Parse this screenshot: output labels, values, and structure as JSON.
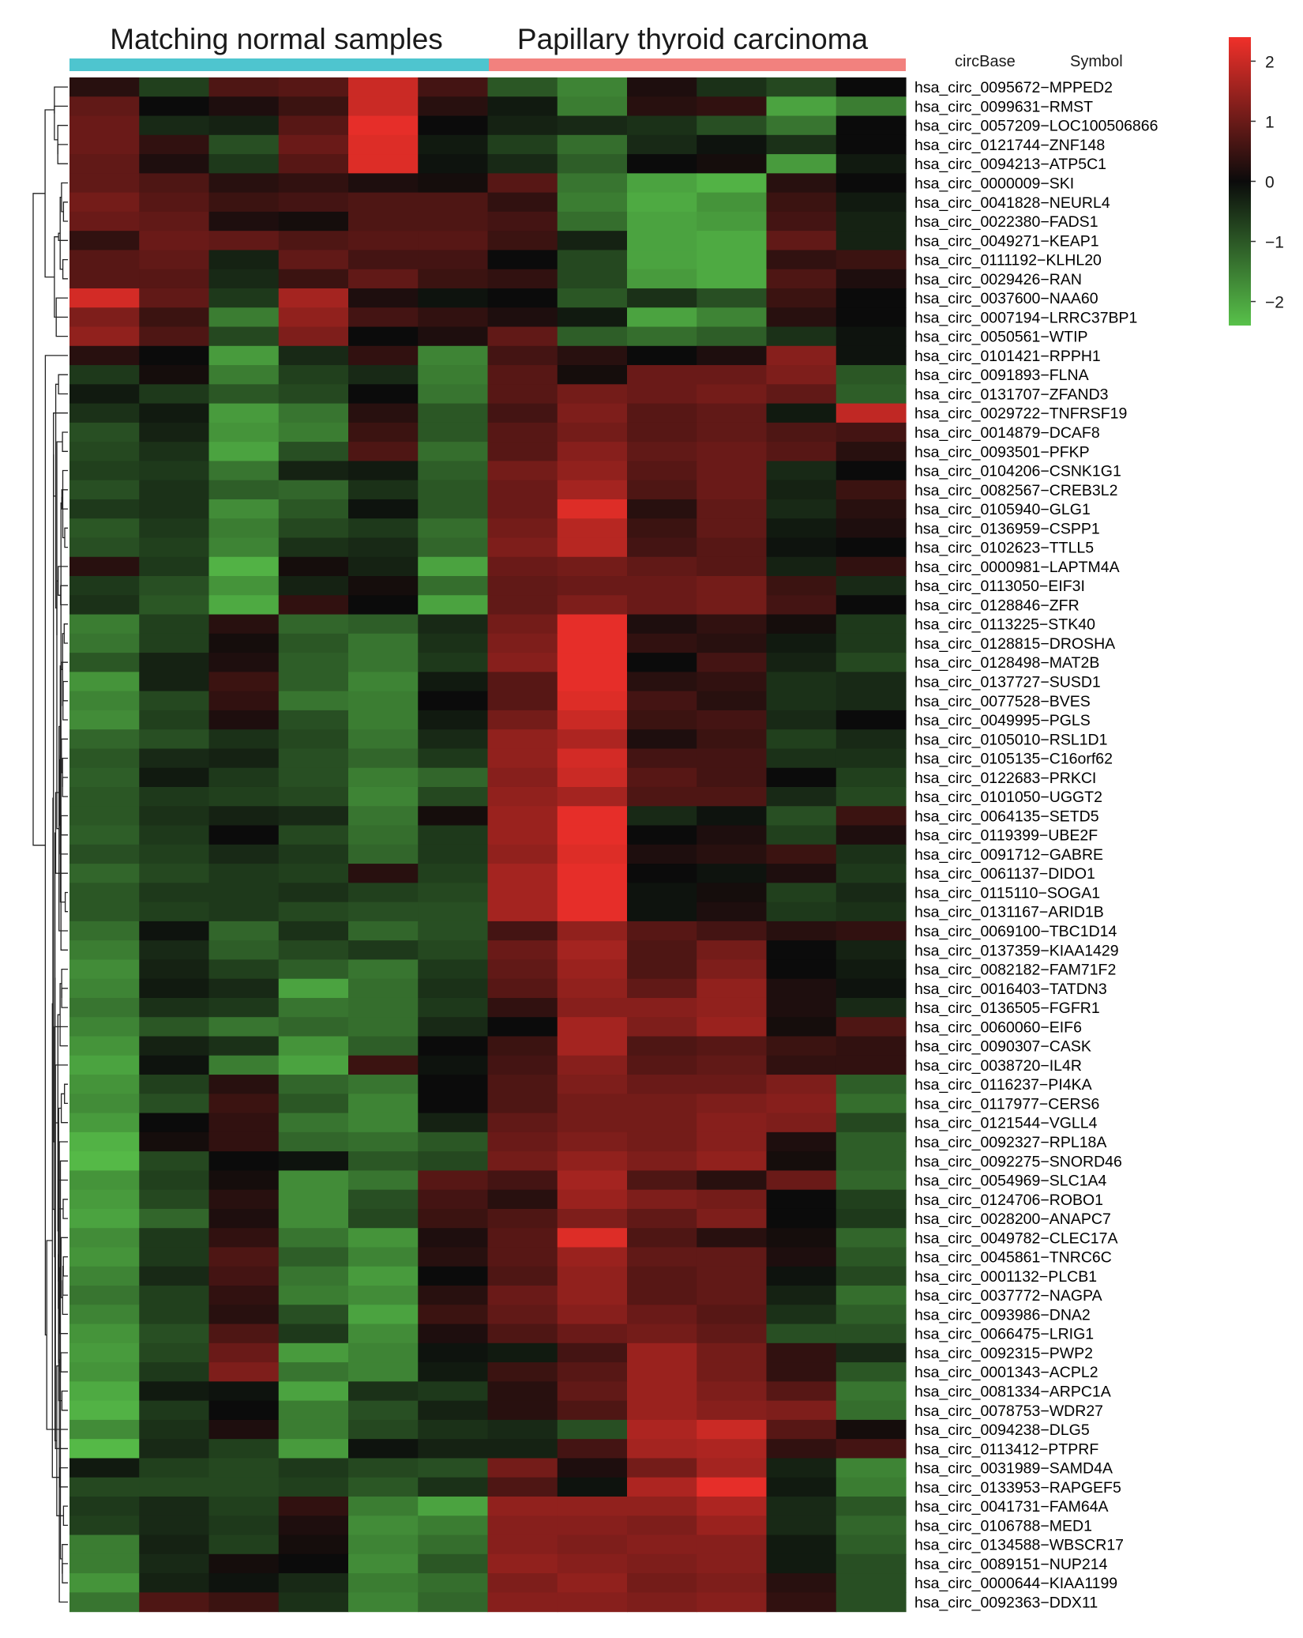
{
  "chart_data": {
    "type": "heatmap",
    "title": "",
    "group_labels": [
      "Matching normal samples",
      "Papillary thyroid carcinoma"
    ],
    "group_colors": [
      "#4ec5cf",
      "#f2817e"
    ],
    "column_headers": [
      "circBase",
      "Symbol"
    ],
    "highlight_row": "hsa_circ_0060060−EIF6",
    "highlight_color": "#e8231f",
    "colorbar": {
      "ticks": [
        2,
        1,
        0,
        -1,
        -2
      ],
      "tick_labels": [
        "2",
        "1",
        "0",
        "−1",
        "−2"
      ],
      "vmin": -2.4,
      "vmax": 2.4,
      "colors": {
        "low": "#58c14a",
        "mid": "#0b0b0b",
        "high": "#f0302a"
      }
    },
    "rows": [
      "hsa_circ_0095672−MPPED2",
      "hsa_circ_0099631−RMST",
      "hsa_circ_0057209−LOC100506866",
      "hsa_circ_0121744−ZNF148",
      "hsa_circ_0094213−ATP5C1",
      "hsa_circ_0000009−SKI",
      "hsa_circ_0041828−NEURL4",
      "hsa_circ_0022380−FADS1",
      "hsa_circ_0049271−KEAP1",
      "hsa_circ_0111192−KLHL20",
      "hsa_circ_0029426−RAN",
      "hsa_circ_0037600−NAA60",
      "hsa_circ_0007194−LRRC37BP1",
      "hsa_circ_0050561−WTIP",
      "hsa_circ_0101421−RPPH1",
      "hsa_circ_0091893−FLNA",
      "hsa_circ_0131707−ZFAND3",
      "hsa_circ_0029722−TNFRSF19",
      "hsa_circ_0014879−DCAF8",
      "hsa_circ_0093501−PFKP",
      "hsa_circ_0104206−CSNK1G1",
      "hsa_circ_0082567−CREB3L2",
      "hsa_circ_0105940−GLG1",
      "hsa_circ_0136959−CSPP1",
      "hsa_circ_0102623−TTLL5",
      "hsa_circ_0000981−LAPTM4A",
      "hsa_circ_0113050−EIF3I",
      "hsa_circ_0128846−ZFR",
      "hsa_circ_0113225−STK40",
      "hsa_circ_0128815−DROSHA",
      "hsa_circ_0128498−MAT2B",
      "hsa_circ_0137727−SUSD1",
      "hsa_circ_0077528−BVES",
      "hsa_circ_0049995−PGLS",
      "hsa_circ_0105010−RSL1D1",
      "hsa_circ_0105135−C16orf62",
      "hsa_circ_0122683−PRKCI",
      "hsa_circ_0101050−UGGT2",
      "hsa_circ_0064135−SETD5",
      "hsa_circ_0119399−UBE2F",
      "hsa_circ_0091712−GABRE",
      "hsa_circ_0061137−DIDO1",
      "hsa_circ_0115110−SOGA1",
      "hsa_circ_0131167−ARID1B",
      "hsa_circ_0069100−TBC1D14",
      "hsa_circ_0137359−KIAA1429",
      "hsa_circ_0082182−FAM71F2",
      "hsa_circ_0016403−TATDN3",
      "hsa_circ_0136505−FGFR1",
      "hsa_circ_0060060−EIF6",
      "hsa_circ_0090307−CASK",
      "hsa_circ_0038720−IL4R",
      "hsa_circ_0116237−PI4KA",
      "hsa_circ_0117977−CERS6",
      "hsa_circ_0121544−VGLL4",
      "hsa_circ_0092327−RPL18A",
      "hsa_circ_0092275−SNORD46",
      "hsa_circ_0054969−SLC1A4",
      "hsa_circ_0124706−ROBO1",
      "hsa_circ_0028200−ANAPC7",
      "hsa_circ_0049782−CLEC17A",
      "hsa_circ_0045861−TNRC6C",
      "hsa_circ_0001132−PLCB1",
      "hsa_circ_0037772−NAGPA",
      "hsa_circ_0093986−DNA2",
      "hsa_circ_0066475−LRIG1",
      "hsa_circ_0092315−PWP2",
      "hsa_circ_0001343−ACPL2",
      "hsa_circ_0081334−ARPC1A",
      "hsa_circ_0078753−WDR27",
      "hsa_circ_0094238−DLG5",
      "hsa_circ_0113412−PTPRF",
      "hsa_circ_0031989−SAMD4A",
      "hsa_circ_0133953−RAPGEF5",
      "hsa_circ_0041731−FAM64A",
      "hsa_circ_0106788−MED1",
      "hsa_circ_0134588−WBSCR17",
      "hsa_circ_0089151−NUP214",
      "hsa_circ_0000644−KIAA1199",
      "hsa_circ_0092363−DDX11"
    ],
    "values": [
      [
        0.3,
        -0.7,
        0.7,
        0.8,
        2.0,
        0.6,
        -1.0,
        -1.6,
        0.2,
        -0.5,
        -0.8,
        0.0
      ],
      [
        0.9,
        0.0,
        0.2,
        0.5,
        2.0,
        0.3,
        -0.2,
        -1.5,
        0.3,
        0.4,
        -2.0,
        -1.5
      ],
      [
        1.0,
        -0.4,
        -0.3,
        0.8,
        2.3,
        0.0,
        -0.3,
        -0.4,
        -0.5,
        -0.9,
        -1.4,
        0.0
      ],
      [
        1.0,
        0.4,
        -0.9,
        1.0,
        2.2,
        -0.2,
        -0.7,
        -1.3,
        -0.4,
        -0.1,
        -0.5,
        0.0
      ],
      [
        0.9,
        0.2,
        -0.6,
        0.8,
        2.2,
        -0.1,
        -0.4,
        -1.1,
        0.0,
        0.1,
        -1.9,
        -0.2
      ],
      [
        0.9,
        0.7,
        0.3,
        0.4,
        0.2,
        0.1,
        0.8,
        -1.4,
        -2.0,
        -2.2,
        0.3,
        0.0
      ],
      [
        1.1,
        0.8,
        0.5,
        0.6,
        0.7,
        0.7,
        0.4,
        -1.5,
        -2.1,
        -1.8,
        0.5,
        -0.2
      ],
      [
        1.0,
        0.9,
        0.2,
        0.1,
        0.7,
        0.7,
        0.6,
        -1.3,
        -2.0,
        -1.9,
        0.6,
        -0.3
      ],
      [
        0.4,
        1.0,
        0.9,
        0.7,
        0.8,
        0.8,
        0.5,
        -0.3,
        -2.0,
        -2.1,
        0.9,
        -0.3
      ],
      [
        0.8,
        0.9,
        -0.3,
        0.9,
        0.6,
        0.6,
        0.0,
        -0.8,
        -2.0,
        -2.1,
        0.4,
        0.5
      ],
      [
        0.8,
        0.8,
        -0.4,
        0.5,
        0.9,
        0.5,
        0.4,
        -0.8,
        -1.9,
        -2.1,
        0.7,
        0.2
      ],
      [
        2.1,
        0.9,
        -0.6,
        1.6,
        0.2,
        -0.1,
        0.0,
        -1.0,
        -0.5,
        -0.9,
        0.5,
        0.0
      ],
      [
        1.2,
        0.5,
        -1.5,
        1.4,
        0.6,
        0.4,
        0.2,
        -0.2,
        -2.0,
        -1.6,
        0.3,
        0.0
      ],
      [
        1.4,
        0.7,
        -0.8,
        1.2,
        0.0,
        0.2,
        0.9,
        -1.1,
        -1.3,
        -1.1,
        -0.5,
        -0.1
      ],
      [
        0.3,
        0.0,
        -1.9,
        -0.4,
        0.4,
        -1.6,
        0.6,
        0.3,
        0.0,
        0.2,
        1.3,
        -0.1
      ],
      [
        -0.6,
        0.1,
        -1.5,
        -0.7,
        -0.4,
        -1.5,
        0.8,
        0.1,
        1.0,
        1.0,
        1.2,
        -1.0
      ],
      [
        -0.2,
        -0.6,
        -1.0,
        -0.8,
        0.0,
        -1.4,
        0.8,
        1.1,
        1.0,
        1.1,
        0.9,
        -1.1
      ],
      [
        -0.5,
        -0.2,
        -1.9,
        -1.4,
        0.3,
        -1.0,
        0.6,
        1.2,
        0.8,
        0.9,
        -0.2,
        1.9
      ],
      [
        -0.9,
        -0.3,
        -1.8,
        -1.5,
        0.5,
        -1.0,
        0.8,
        1.1,
        0.8,
        0.9,
        0.7,
        0.6
      ],
      [
        -0.8,
        -0.5,
        -2.0,
        -0.9,
        0.7,
        -1.3,
        0.8,
        1.3,
        0.9,
        1.0,
        0.8,
        0.3
      ],
      [
        -0.7,
        -0.6,
        -1.4,
        -0.3,
        -0.2,
        -1.1,
        1.1,
        1.4,
        0.8,
        1.0,
        -0.4,
        0.0
      ],
      [
        -0.9,
        -0.5,
        -1.1,
        -1.2,
        -0.5,
        -1.0,
        1.0,
        1.6,
        0.7,
        1.0,
        -0.3,
        0.5
      ],
      [
        -0.6,
        -0.5,
        -1.7,
        -1.0,
        -0.1,
        -1.0,
        1.0,
        2.2,
        0.3,
        0.9,
        -0.4,
        0.3
      ],
      [
        -1.0,
        -0.6,
        -1.5,
        -0.8,
        -0.6,
        -1.3,
        1.1,
        1.8,
        0.5,
        0.9,
        -0.2,
        0.2
      ],
      [
        -0.9,
        -0.7,
        -1.6,
        -0.5,
        -0.4,
        -1.2,
        1.2,
        1.8,
        0.6,
        0.8,
        -0.1,
        0.0
      ],
      [
        0.3,
        -0.6,
        -2.2,
        0.1,
        -0.3,
        -2.0,
        1.0,
        1.1,
        0.9,
        0.8,
        -0.3,
        0.4
      ],
      [
        -0.6,
        -0.9,
        -1.8,
        -0.3,
        0.1,
        -1.3,
        0.9,
        1.0,
        1.0,
        1.1,
        0.5,
        -0.4
      ],
      [
        -0.5,
        -1.0,
        -2.1,
        0.4,
        0.0,
        -2.0,
        0.9,
        1.2,
        1.0,
        1.1,
        0.6,
        0.0
      ],
      [
        -1.5,
        -0.7,
        0.3,
        -1.2,
        -1.1,
        -0.4,
        1.1,
        2.3,
        0.2,
        0.4,
        0.1,
        -0.6
      ],
      [
        -1.4,
        -0.7,
        0.1,
        -1.0,
        -1.4,
        -0.5,
        1.2,
        2.3,
        0.4,
        0.3,
        -0.2,
        -0.6
      ],
      [
        -1.0,
        -0.3,
        0.2,
        -1.1,
        -1.4,
        -0.6,
        1.3,
        2.3,
        0.0,
        0.6,
        -0.3,
        -0.8
      ],
      [
        -1.8,
        -0.3,
        0.5,
        -1.1,
        -1.6,
        -0.2,
        0.8,
        2.3,
        0.3,
        0.4,
        -0.5,
        -0.4
      ],
      [
        -1.6,
        -0.8,
        0.4,
        -1.4,
        -1.5,
        0.0,
        0.8,
        2.2,
        0.6,
        0.3,
        -0.5,
        -0.4
      ],
      [
        -1.7,
        -0.7,
        0.2,
        -0.9,
        -1.5,
        -0.2,
        1.1,
        2.0,
        0.5,
        0.6,
        -0.4,
        0.0
      ],
      [
        -1.2,
        -0.9,
        -0.5,
        -0.8,
        -1.4,
        -0.4,
        1.4,
        1.7,
        0.2,
        0.5,
        -0.7,
        -0.4
      ],
      [
        -1.0,
        -0.4,
        -0.3,
        -0.9,
        -1.2,
        -0.6,
        1.4,
        2.1,
        0.6,
        0.6,
        -0.5,
        -0.5
      ],
      [
        -1.1,
        -0.2,
        -0.6,
        -0.9,
        -1.5,
        -1.2,
        1.3,
        2.0,
        0.8,
        0.6,
        0.0,
        -0.7
      ],
      [
        -1.0,
        -0.6,
        -0.7,
        -0.8,
        -1.6,
        -0.8,
        1.4,
        1.6,
        0.7,
        0.7,
        -0.4,
        -0.8
      ],
      [
        -1.0,
        -0.5,
        -0.3,
        -0.4,
        -1.4,
        0.1,
        1.5,
        2.3,
        -0.4,
        -0.1,
        -0.9,
        0.5
      ],
      [
        -1.1,
        -0.6,
        0.0,
        -0.8,
        -1.3,
        -0.6,
        1.5,
        2.3,
        0.0,
        0.2,
        -0.7,
        0.2
      ],
      [
        -0.9,
        -0.7,
        -0.4,
        -0.6,
        -1.2,
        -0.6,
        1.4,
        2.2,
        0.2,
        0.3,
        0.5,
        -0.5
      ],
      [
        -1.2,
        -0.8,
        -0.6,
        -0.7,
        0.3,
        -0.7,
        1.6,
        2.3,
        0.0,
        -0.1,
        0.2,
        -0.6
      ],
      [
        -1.0,
        -0.6,
        -0.6,
        -0.5,
        -0.7,
        -0.8,
        1.6,
        2.3,
        -0.1,
        0.1,
        -0.7,
        -0.4
      ],
      [
        -1.0,
        -0.7,
        -0.6,
        -0.8,
        -0.9,
        -0.9,
        1.6,
        2.3,
        -0.1,
        0.2,
        -0.6,
        -0.5
      ],
      [
        -1.3,
        -0.1,
        -1.2,
        -0.5,
        -1.2,
        -0.9,
        0.6,
        1.4,
        0.8,
        0.6,
        0.3,
        0.4
      ],
      [
        -1.5,
        -0.4,
        -1.1,
        -0.8,
        -0.6,
        -0.8,
        1.0,
        1.6,
        0.7,
        1.1,
        0.0,
        -0.3
      ],
      [
        -1.7,
        -0.3,
        -0.7,
        -1.1,
        -1.4,
        -0.6,
        0.9,
        1.5,
        0.7,
        1.2,
        0.0,
        -0.2
      ],
      [
        -1.6,
        -0.2,
        -0.4,
        -2.0,
        -1.3,
        -0.5,
        0.8,
        1.4,
        0.9,
        1.4,
        0.2,
        -0.1
      ],
      [
        -1.4,
        -0.5,
        -0.6,
        -1.4,
        -1.3,
        -0.6,
        0.4,
        1.3,
        1.3,
        1.4,
        0.2,
        -0.4
      ],
      [
        -1.6,
        -1.0,
        -1.4,
        -1.2,
        -1.3,
        -0.4,
        0.0,
        1.6,
        1.2,
        1.5,
        0.1,
        0.7
      ],
      [
        -1.8,
        -0.3,
        -0.5,
        -1.8,
        -1.1,
        0.0,
        0.5,
        1.6,
        0.7,
        0.8,
        0.5,
        0.4
      ],
      [
        -2.0,
        -0.1,
        -1.5,
        -2.0,
        0.5,
        -0.1,
        0.6,
        1.3,
        0.8,
        0.9,
        0.4,
        0.4
      ],
      [
        -1.8,
        -0.7,
        0.3,
        -1.2,
        -1.4,
        0.0,
        0.7,
        1.2,
        1.0,
        1.0,
        1.2,
        -1.1
      ],
      [
        -1.7,
        -0.9,
        0.5,
        -1.0,
        -1.6,
        0.0,
        0.7,
        1.1,
        1.1,
        1.2,
        1.3,
        -1.3
      ],
      [
        -1.9,
        0.0,
        0.4,
        -1.4,
        -1.6,
        -0.3,
        0.9,
        1.1,
        1.1,
        1.3,
        1.2,
        -0.8
      ],
      [
        -2.2,
        0.1,
        0.4,
        -1.2,
        -1.3,
        -1.0,
        1.0,
        1.2,
        1.1,
        1.3,
        0.2,
        -1.1
      ],
      [
        -2.3,
        -0.8,
        0.0,
        -0.1,
        -1.0,
        -0.8,
        1.1,
        1.4,
        1.2,
        1.4,
        0.1,
        -1.1
      ],
      [
        -1.8,
        -0.7,
        0.1,
        -1.7,
        -1.4,
        0.8,
        0.6,
        1.6,
        0.7,
        0.3,
        1.0,
        -1.2
      ],
      [
        -1.9,
        -0.8,
        0.3,
        -1.7,
        -0.9,
        0.6,
        0.3,
        1.5,
        1.2,
        1.1,
        0.0,
        -0.7
      ],
      [
        -2.0,
        -1.2,
        0.2,
        -1.7,
        -0.8,
        0.5,
        0.7,
        1.2,
        0.9,
        1.2,
        0.0,
        -0.6
      ],
      [
        -1.7,
        -0.6,
        0.4,
        -1.4,
        -1.8,
        0.2,
        0.8,
        2.2,
        0.7,
        0.3,
        0.1,
        -1.2
      ],
      [
        -1.8,
        -0.6,
        0.7,
        -1.1,
        -1.6,
        0.3,
        0.8,
        1.5,
        0.9,
        0.9,
        0.2,
        -1.0
      ],
      [
        -1.6,
        -0.4,
        0.6,
        -1.4,
        -1.9,
        0.0,
        0.7,
        1.4,
        0.8,
        0.9,
        -0.1,
        -0.8
      ],
      [
        -1.4,
        -0.7,
        0.4,
        -1.5,
        -1.7,
        0.3,
        1.0,
        1.4,
        0.8,
        0.9,
        -0.3,
        -1.3
      ],
      [
        -1.6,
        -0.7,
        0.3,
        -0.9,
        -2.0,
        0.5,
        0.9,
        1.3,
        1.0,
        0.8,
        -0.5,
        -1.1
      ],
      [
        -1.8,
        -0.9,
        0.7,
        -0.6,
        -1.7,
        0.2,
        0.7,
        1.0,
        1.1,
        0.9,
        -0.9,
        -0.9
      ],
      [
        -1.9,
        -0.8,
        1.0,
        -1.9,
        -1.6,
        -0.1,
        -0.2,
        0.6,
        1.5,
        1.1,
        0.4,
        -0.4
      ],
      [
        -1.8,
        -0.6,
        1.2,
        -1.4,
        -1.6,
        -0.2,
        0.5,
        0.8,
        1.5,
        1.1,
        0.4,
        -1.0
      ],
      [
        -2.1,
        -0.2,
        -0.1,
        -2.0,
        -0.5,
        -0.6,
        0.3,
        0.9,
        1.5,
        1.2,
        0.8,
        -1.4
      ],
      [
        -2.2,
        -0.6,
        0.0,
        -1.5,
        -0.9,
        -0.3,
        0.3,
        0.7,
        1.5,
        1.3,
        1.2,
        -1.3
      ],
      [
        -1.7,
        -0.5,
        0.2,
        -1.5,
        -0.8,
        -0.5,
        -0.4,
        -0.9,
        1.7,
        2.0,
        0.8,
        0.1
      ],
      [
        -2.3,
        -0.4,
        -0.7,
        -1.9,
        -0.1,
        -0.3,
        -0.3,
        0.6,
        1.6,
        1.7,
        0.4,
        0.6
      ],
      [
        -0.2,
        -0.7,
        -0.8,
        -0.6,
        -0.8,
        -0.9,
        1.1,
        0.2,
        1.1,
        1.6,
        -0.3,
        -1.6
      ],
      [
        -0.8,
        -0.8,
        -0.8,
        -0.7,
        -1.0,
        -0.5,
        0.7,
        -0.1,
        1.7,
        2.3,
        -0.2,
        -1.5
      ],
      [
        -0.6,
        -0.4,
        -0.7,
        0.4,
        -1.5,
        -2.0,
        1.4,
        1.4,
        1.4,
        1.7,
        -0.4,
        -1.0
      ],
      [
        -0.7,
        -0.4,
        -0.6,
        0.2,
        -1.7,
        -1.5,
        1.3,
        1.3,
        1.2,
        1.5,
        -0.4,
        -1.2
      ],
      [
        -1.5,
        -0.3,
        -0.7,
        0.1,
        -1.6,
        -1.3,
        1.3,
        1.2,
        1.3,
        1.3,
        -0.2,
        -1.1
      ],
      [
        -1.5,
        -0.4,
        0.1,
        0.0,
        -1.7,
        -1.0,
        1.4,
        1.3,
        1.2,
        1.3,
        -0.2,
        -0.9
      ],
      [
        -1.8,
        -0.3,
        -0.1,
        -0.4,
        -1.5,
        -1.3,
        1.2,
        1.4,
        1.1,
        1.2,
        0.3,
        -0.9
      ],
      [
        -1.4,
        0.7,
        0.5,
        -0.5,
        -1.6,
        -1.2,
        1.3,
        1.3,
        1.2,
        1.3,
        0.4,
        -0.9
      ]
    ]
  }
}
